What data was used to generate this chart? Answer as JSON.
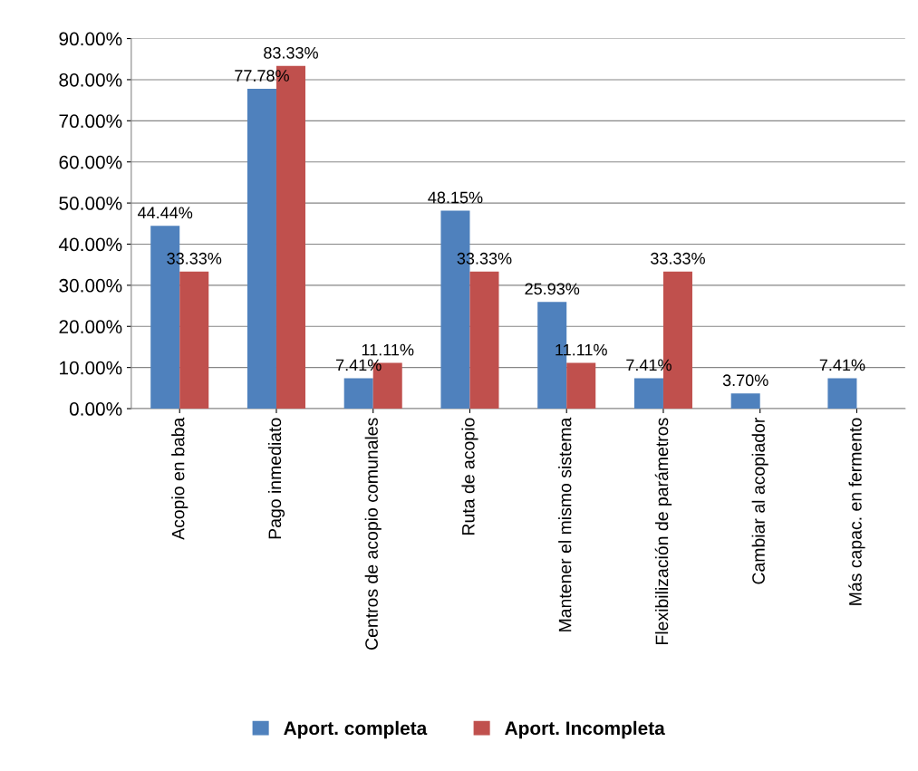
{
  "chart_data": {
    "type": "bar",
    "categories": [
      "Acopio en baba",
      "Pago inmediato",
      "Centros de acopio comunales",
      "Ruta de acopio",
      "Mantener el mismo sistema",
      "Flexibilización de parámetros",
      "Cambiar al acopiador",
      "Más capac. en fermento"
    ],
    "series": [
      {
        "name": "Aport. completa",
        "color": "#4f81bd",
        "values": [
          44.44,
          77.78,
          7.41,
          48.15,
          25.93,
          7.41,
          3.7,
          7.41
        ],
        "value_labels": [
          "44.44%",
          "77.78%",
          "7.41%",
          "48.15%",
          "25.93%",
          "7.41%",
          "3.70%",
          "7.41%"
        ]
      },
      {
        "name": "Aport. Incompleta",
        "color": "#c0504d",
        "values": [
          33.33,
          83.33,
          11.11,
          33.33,
          11.11,
          33.33,
          null,
          null
        ],
        "value_labels": [
          "33.33%",
          "83.33%",
          "11.11%",
          "33.33%",
          "11.11%",
          "33.33%",
          null,
          null
        ]
      }
    ],
    "ylim": [
      0,
      90
    ],
    "yticks": [
      {
        "value": 0,
        "label": "0.00%"
      },
      {
        "value": 10,
        "label": "10.00%"
      },
      {
        "value": 20,
        "label": "20.00%"
      },
      {
        "value": 30,
        "label": "30.00%"
      },
      {
        "value": 40,
        "label": "40.00%"
      },
      {
        "value": 50,
        "label": "50.00%"
      },
      {
        "value": 60,
        "label": "60.00%"
      },
      {
        "value": 70,
        "label": "70.00%"
      },
      {
        "value": 80,
        "label": "80.00%"
      },
      {
        "value": 90,
        "label": "90.00%"
      }
    ],
    "grid": "y",
    "legend": "bottom"
  }
}
